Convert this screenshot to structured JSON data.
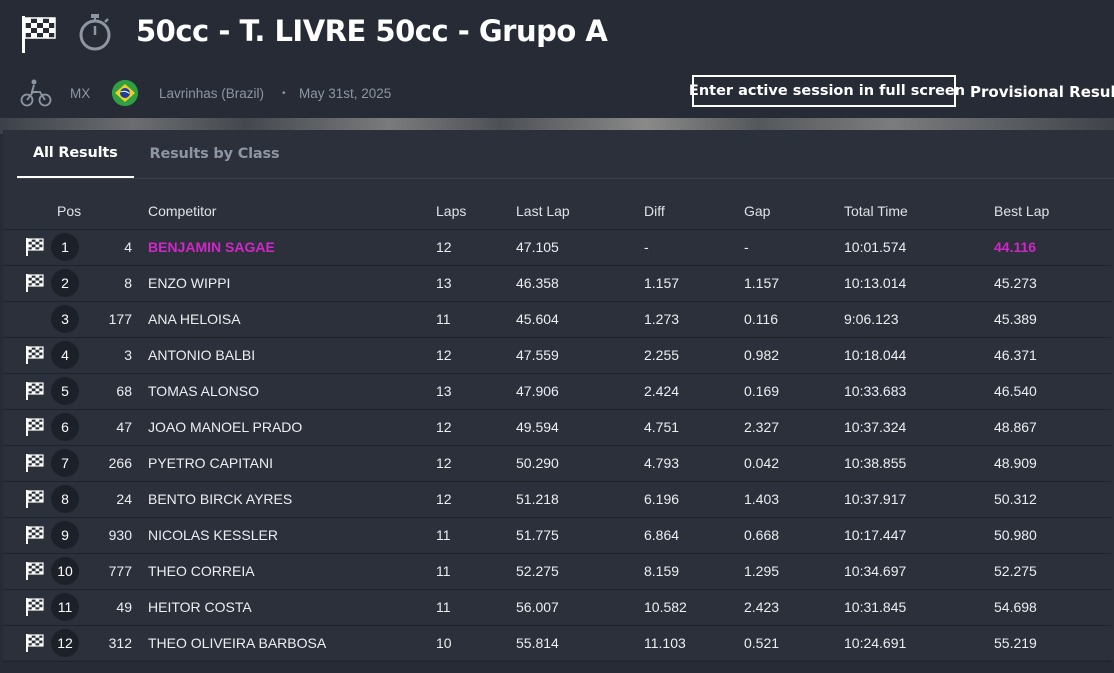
{
  "header": {
    "title": "50cc - T. LIVRE 50cc - Grupo A",
    "discipline": "MX",
    "location": "Lavrinhas (Brazil)",
    "separator": "•",
    "date": "May 31st, 2025",
    "fullscreen_label": "Enter active session in full screen",
    "status": "Provisional Results"
  },
  "tabs": [
    {
      "label": "All Results",
      "active": true
    },
    {
      "label": "Results by Class",
      "active": false
    }
  ],
  "columns": {
    "pos": "Pos",
    "competitor": "Competitor",
    "laps": "Laps",
    "last_lap": "Last Lap",
    "diff": "Diff",
    "gap": "Gap",
    "total_time": "Total Time",
    "best_lap": "Best Lap"
  },
  "colors": {
    "highlight": "#d226c8",
    "background": "#262b35",
    "panel": "#2b303b"
  },
  "rows": [
    {
      "finished": true,
      "pos": "1",
      "num": "4",
      "competitor": "BENJAMIN SAGAE",
      "laps": "12",
      "last_lap": "47.105",
      "diff": "-",
      "gap": "-",
      "total_time": "10:01.574",
      "best_lap": "44.116",
      "highlight": true
    },
    {
      "finished": true,
      "pos": "2",
      "num": "8",
      "competitor": "ENZO WIPPI",
      "laps": "13",
      "last_lap": "46.358",
      "diff": "1.157",
      "gap": "1.157",
      "total_time": "10:13.014",
      "best_lap": "45.273"
    },
    {
      "finished": false,
      "pos": "3",
      "num": "177",
      "competitor": "ANA HELOISA",
      "laps": "11",
      "last_lap": "45.604",
      "diff": "1.273",
      "gap": "0.116",
      "total_time": "9:06.123",
      "best_lap": "45.389"
    },
    {
      "finished": true,
      "pos": "4",
      "num": "3",
      "competitor": "ANTONIO BALBI",
      "laps": "12",
      "last_lap": "47.559",
      "diff": "2.255",
      "gap": "0.982",
      "total_time": "10:18.044",
      "best_lap": "46.371"
    },
    {
      "finished": true,
      "pos": "5",
      "num": "68",
      "competitor": "TOMAS ALONSO",
      "laps": "13",
      "last_lap": "47.906",
      "diff": "2.424",
      "gap": "0.169",
      "total_time": "10:33.683",
      "best_lap": "46.540"
    },
    {
      "finished": true,
      "pos": "6",
      "num": "47",
      "competitor": "JOAO MANOEL PRADO",
      "laps": "12",
      "last_lap": "49.594",
      "diff": "4.751",
      "gap": "2.327",
      "total_time": "10:37.324",
      "best_lap": "48.867"
    },
    {
      "finished": true,
      "pos": "7",
      "num": "266",
      "competitor": "PYETRO CAPITANI",
      "laps": "12",
      "last_lap": "50.290",
      "diff": "4.793",
      "gap": "0.042",
      "total_time": "10:38.855",
      "best_lap": "48.909"
    },
    {
      "finished": true,
      "pos": "8",
      "num": "24",
      "competitor": "BENTO BIRCK AYRES",
      "laps": "12",
      "last_lap": "51.218",
      "diff": "6.196",
      "gap": "1.403",
      "total_time": "10:37.917",
      "best_lap": "50.312"
    },
    {
      "finished": true,
      "pos": "9",
      "num": "930",
      "competitor": "NICOLAS KESSLER",
      "laps": "11",
      "last_lap": "51.775",
      "diff": "6.864",
      "gap": "0.668",
      "total_time": "10:17.447",
      "best_lap": "50.980"
    },
    {
      "finished": true,
      "pos": "10",
      "num": "777",
      "competitor": "THEO CORREIA",
      "laps": "11",
      "last_lap": "52.275",
      "diff": "8.159",
      "gap": "1.295",
      "total_time": "10:34.697",
      "best_lap": "52.275"
    },
    {
      "finished": true,
      "pos": "11",
      "num": "49",
      "competitor": "HEITOR COSTA",
      "laps": "11",
      "last_lap": "56.007",
      "diff": "10.582",
      "gap": "2.423",
      "total_time": "10:31.845",
      "best_lap": "54.698"
    },
    {
      "finished": true,
      "pos": "12",
      "num": "312",
      "competitor": "THEO OLIVEIRA BARBOSA",
      "laps": "10",
      "last_lap": "55.814",
      "diff": "11.103",
      "gap": "0.521",
      "total_time": "10:24.691",
      "best_lap": "55.219"
    }
  ]
}
